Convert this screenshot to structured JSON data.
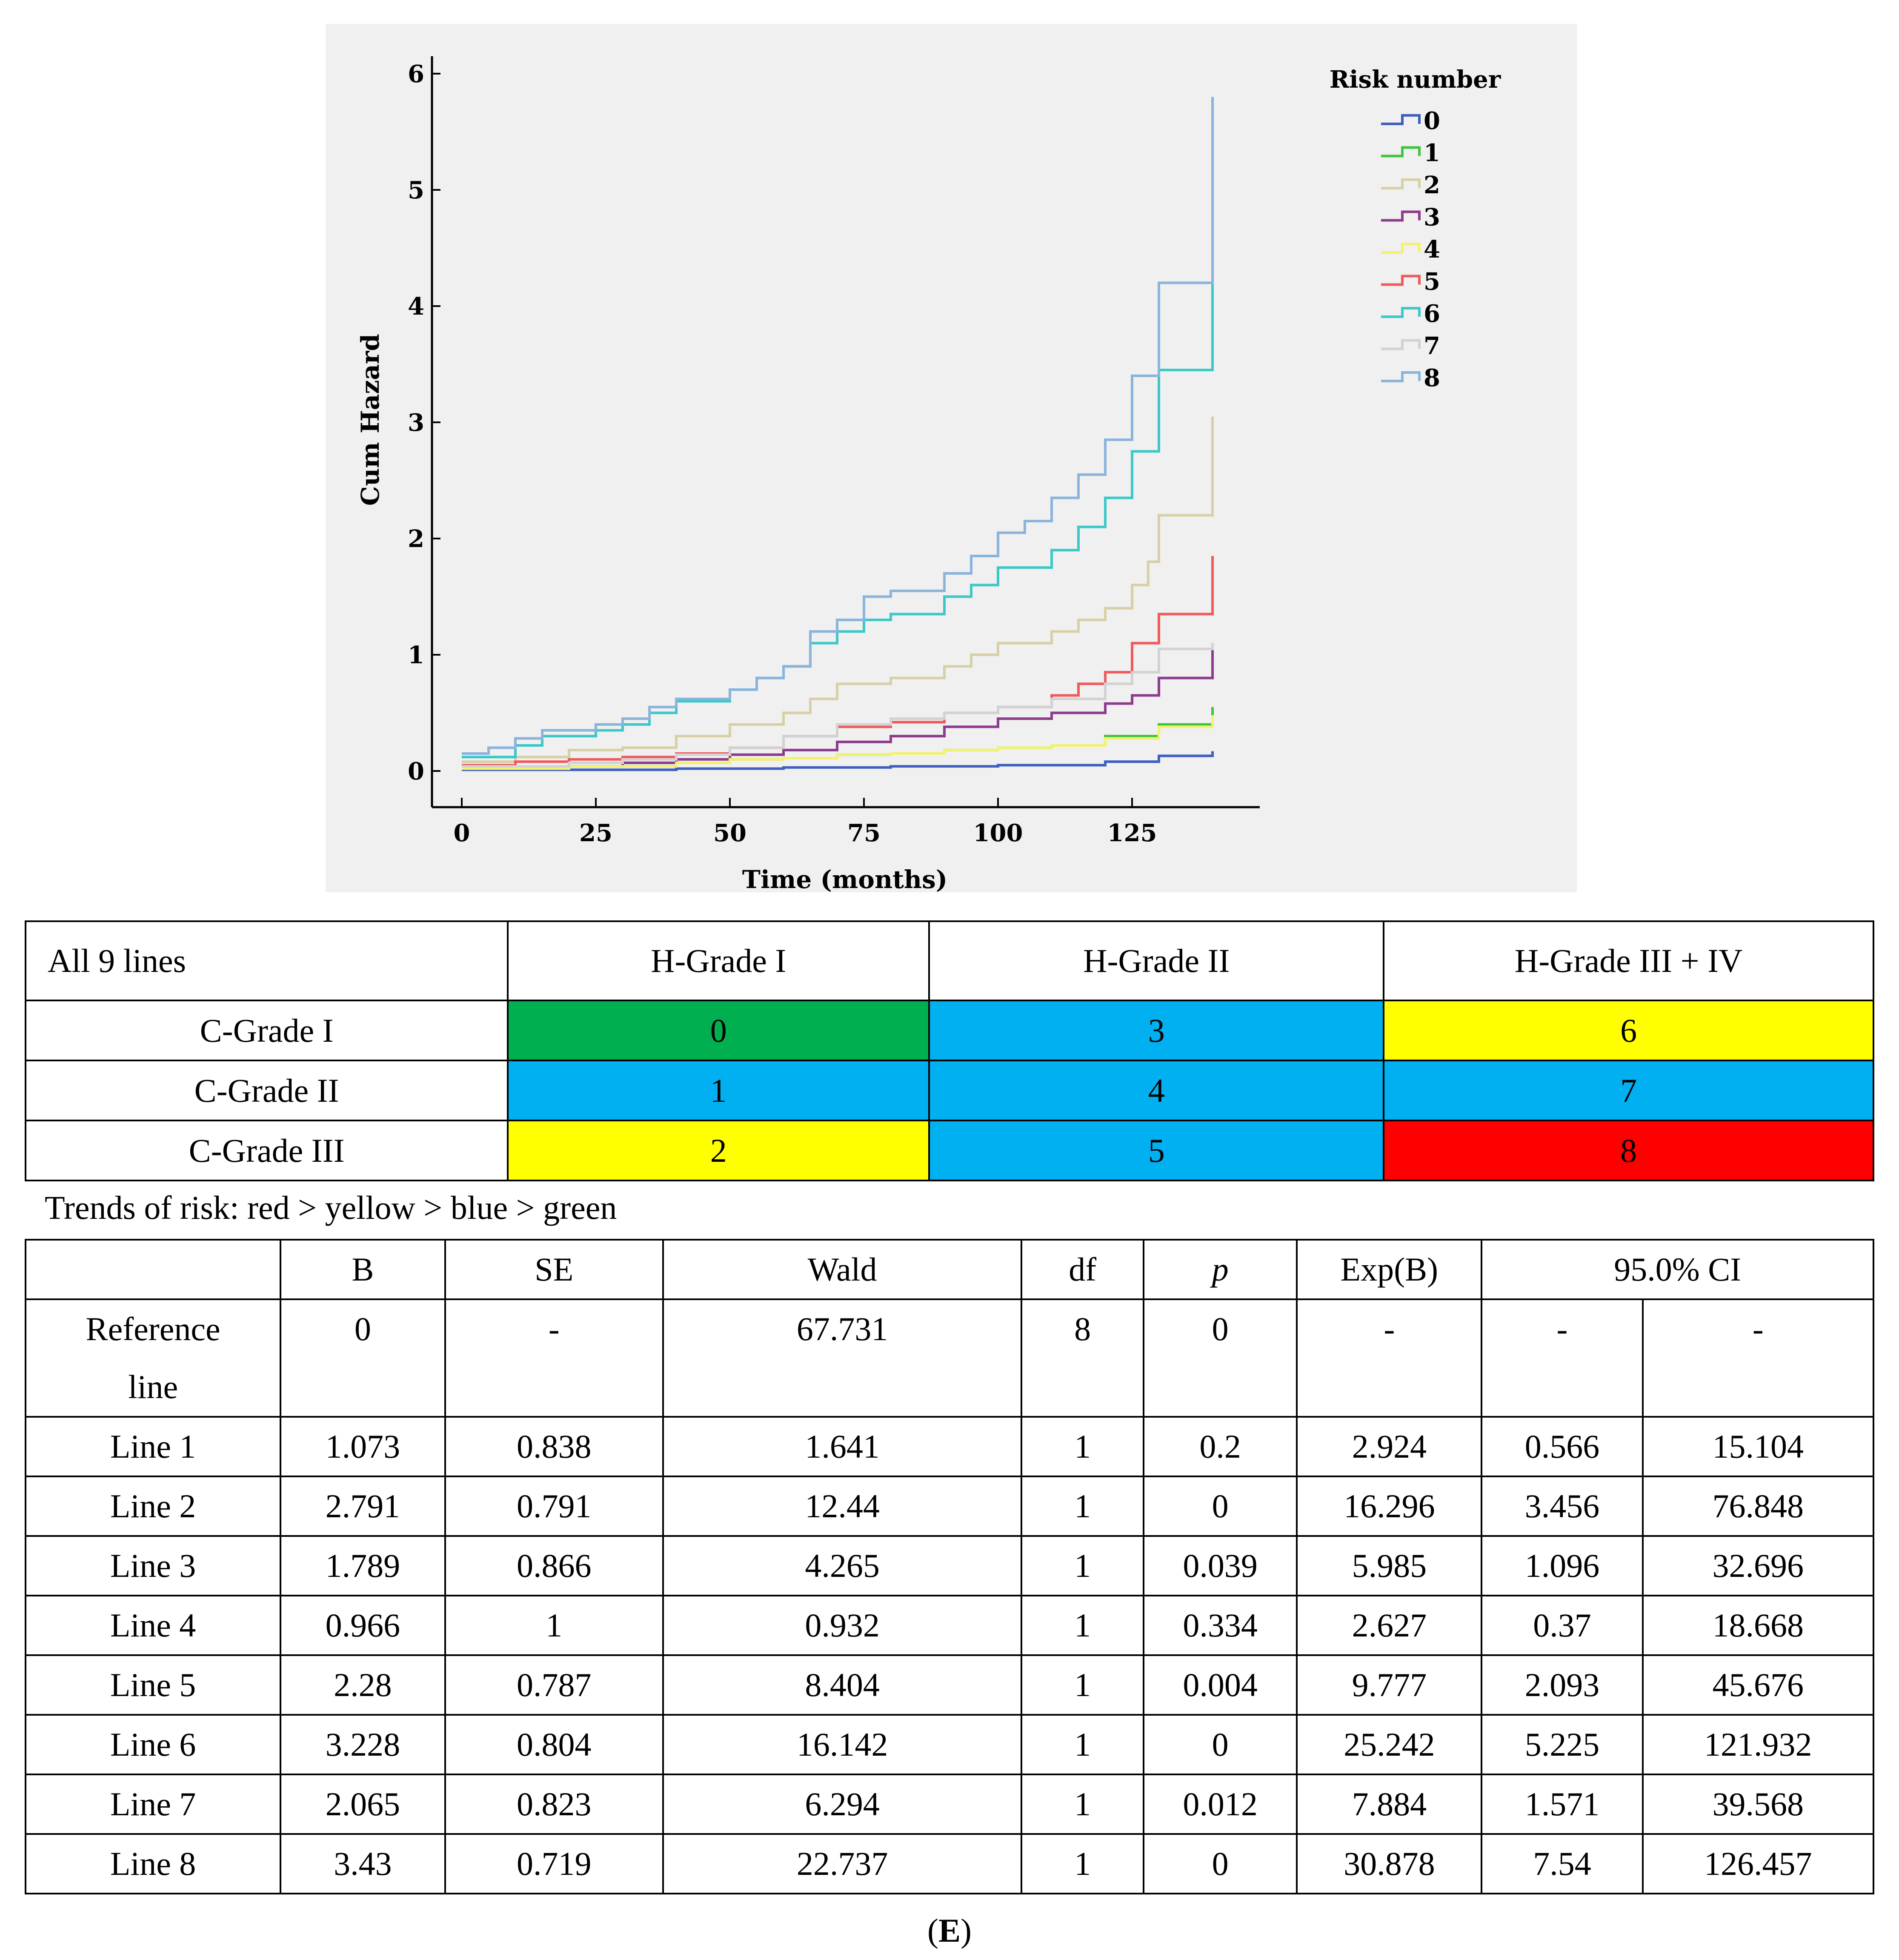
{
  "chart_data": {
    "type": "line",
    "step": true,
    "xlabel": "Time (months)",
    "ylabel": "Cum Hazard",
    "xlim": [
      0,
      140
    ],
    "ylim": [
      0,
      6
    ],
    "xticks": [
      0,
      25,
      50,
      75,
      100,
      125
    ],
    "yticks": [
      0,
      1,
      2,
      3,
      4,
      5,
      6
    ],
    "grid": false,
    "legend": {
      "title": "Risk number",
      "position": "top-right"
    },
    "series": [
      {
        "name": "0",
        "color": "#3f5fbf",
        "points": [
          [
            0,
            0.01
          ],
          [
            20,
            0.01
          ],
          [
            40,
            0.02
          ],
          [
            60,
            0.03
          ],
          [
            80,
            0.04
          ],
          [
            100,
            0.05
          ],
          [
            120,
            0.08
          ],
          [
            130,
            0.13
          ],
          [
            140,
            0.15
          ],
          [
            140,
            0.17
          ]
        ]
      },
      {
        "name": "1",
        "color": "#3ec43e",
        "points": [
          [
            0,
            0.02
          ],
          [
            20,
            0.04
          ],
          [
            40,
            0.07
          ],
          [
            50,
            0.1
          ],
          [
            60,
            0.11
          ],
          [
            70,
            0.14
          ],
          [
            80,
            0.15
          ],
          [
            90,
            0.18
          ],
          [
            100,
            0.2
          ],
          [
            110,
            0.22
          ],
          [
            120,
            0.3
          ],
          [
            130,
            0.4
          ],
          [
            140,
            0.4
          ],
          [
            140,
            0.55
          ]
        ]
      },
      {
        "name": "2",
        "color": "#d8cfa6",
        "points": [
          [
            0,
            0.08
          ],
          [
            10,
            0.12
          ],
          [
            20,
            0.18
          ],
          [
            30,
            0.2
          ],
          [
            40,
            0.3
          ],
          [
            50,
            0.4
          ],
          [
            60,
            0.5
          ],
          [
            65,
            0.62
          ],
          [
            70,
            0.75
          ],
          [
            80,
            0.8
          ],
          [
            90,
            0.9
          ],
          [
            95,
            1.0
          ],
          [
            100,
            1.1
          ],
          [
            110,
            1.2
          ],
          [
            115,
            1.3
          ],
          [
            120,
            1.4
          ],
          [
            125,
            1.6
          ],
          [
            128,
            1.8
          ],
          [
            130,
            2.2
          ],
          [
            140,
            2.2
          ],
          [
            140,
            3.05
          ]
        ]
      },
      {
        "name": "3",
        "color": "#8e3b8e",
        "points": [
          [
            0,
            0.02
          ],
          [
            20,
            0.04
          ],
          [
            30,
            0.07
          ],
          [
            40,
            0.1
          ],
          [
            50,
            0.14
          ],
          [
            60,
            0.18
          ],
          [
            70,
            0.25
          ],
          [
            80,
            0.3
          ],
          [
            90,
            0.38
          ],
          [
            100,
            0.45
          ],
          [
            110,
            0.5
          ],
          [
            120,
            0.58
          ],
          [
            125,
            0.65
          ],
          [
            130,
            0.8
          ],
          [
            140,
            0.8
          ],
          [
            140,
            1.1
          ]
        ]
      },
      {
        "name": "4",
        "color": "#f2f270",
        "points": [
          [
            0,
            0.02
          ],
          [
            20,
            0.04
          ],
          [
            40,
            0.07
          ],
          [
            50,
            0.1
          ],
          [
            60,
            0.11
          ],
          [
            70,
            0.14
          ],
          [
            80,
            0.15
          ],
          [
            90,
            0.18
          ],
          [
            100,
            0.2
          ],
          [
            110,
            0.22
          ],
          [
            120,
            0.28
          ],
          [
            130,
            0.38
          ],
          [
            140,
            0.38
          ],
          [
            140,
            0.48
          ]
        ]
      },
      {
        "name": "5",
        "color": "#f05a5a",
        "points": [
          [
            0,
            0.05
          ],
          [
            10,
            0.08
          ],
          [
            20,
            0.1
          ],
          [
            30,
            0.12
          ],
          [
            40,
            0.15
          ],
          [
            50,
            0.2
          ],
          [
            60,
            0.3
          ],
          [
            70,
            0.38
          ],
          [
            80,
            0.42
          ],
          [
            90,
            0.5
          ],
          [
            100,
            0.55
          ],
          [
            110,
            0.65
          ],
          [
            115,
            0.75
          ],
          [
            120,
            0.85
          ],
          [
            125,
            1.1
          ],
          [
            130,
            1.35
          ],
          [
            140,
            1.35
          ],
          [
            140,
            1.85
          ]
        ]
      },
      {
        "name": "6",
        "color": "#3cc8c8",
        "points": [
          [
            0,
            0.12
          ],
          [
            10,
            0.22
          ],
          [
            15,
            0.3
          ],
          [
            25,
            0.35
          ],
          [
            30,
            0.4
          ],
          [
            35,
            0.5
          ],
          [
            40,
            0.6
          ],
          [
            50,
            0.7
          ],
          [
            55,
            0.8
          ],
          [
            60,
            0.9
          ],
          [
            65,
            1.1
          ],
          [
            70,
            1.2
          ],
          [
            75,
            1.3
          ],
          [
            80,
            1.35
          ],
          [
            90,
            1.5
          ],
          [
            95,
            1.6
          ],
          [
            100,
            1.75
          ],
          [
            110,
            1.9
          ],
          [
            115,
            2.1
          ],
          [
            120,
            2.35
          ],
          [
            125,
            2.75
          ],
          [
            130,
            3.45
          ],
          [
            140,
            3.45
          ],
          [
            140,
            4.75
          ]
        ]
      },
      {
        "name": "7",
        "color": "#d2d2d2",
        "points": [
          [
            0,
            0.04
          ],
          [
            20,
            0.07
          ],
          [
            30,
            0.1
          ],
          [
            40,
            0.14
          ],
          [
            50,
            0.2
          ],
          [
            60,
            0.3
          ],
          [
            70,
            0.4
          ],
          [
            80,
            0.45
          ],
          [
            90,
            0.5
          ],
          [
            100,
            0.55
          ],
          [
            110,
            0.62
          ],
          [
            120,
            0.75
          ],
          [
            125,
            0.85
          ],
          [
            130,
            1.05
          ],
          [
            140,
            1.05
          ],
          [
            140,
            1.1
          ]
        ]
      },
      {
        "name": "8",
        "color": "#8ab4dc",
        "points": [
          [
            0,
            0.15
          ],
          [
            5,
            0.2
          ],
          [
            10,
            0.28
          ],
          [
            15,
            0.35
          ],
          [
            25,
            0.4
          ],
          [
            30,
            0.45
          ],
          [
            35,
            0.55
          ],
          [
            40,
            0.62
          ],
          [
            50,
            0.7
          ],
          [
            55,
            0.8
          ],
          [
            60,
            0.9
          ],
          [
            65,
            1.2
          ],
          [
            70,
            1.3
          ],
          [
            75,
            1.5
          ],
          [
            80,
            1.55
          ],
          [
            90,
            1.7
          ],
          [
            95,
            1.85
          ],
          [
            100,
            2.05
          ],
          [
            105,
            2.15
          ],
          [
            110,
            2.35
          ],
          [
            115,
            2.55
          ],
          [
            120,
            2.85
          ],
          [
            125,
            3.4
          ],
          [
            130,
            4.2
          ],
          [
            140,
            4.2
          ],
          [
            140,
            5.8
          ]
        ]
      }
    ]
  },
  "grade_table": {
    "corner": "All 9 lines",
    "col_headers": [
      "H-Grade I",
      "H-Grade II",
      "H-Grade III + IV"
    ],
    "rows": [
      {
        "label": "C-Grade I",
        "cells": [
          {
            "value": "0",
            "color": "#00b050"
          },
          {
            "value": "3",
            "color": "#00b0f0"
          },
          {
            "value": "6",
            "color": "#ffff00"
          }
        ]
      },
      {
        "label": "C-Grade II",
        "cells": [
          {
            "value": "1",
            "color": "#00b0f0"
          },
          {
            "value": "4",
            "color": "#00b0f0"
          },
          {
            "value": "7",
            "color": "#00b0f0"
          }
        ]
      },
      {
        "label": "C-Grade III",
        "cells": [
          {
            "value": "2",
            "color": "#ffff00"
          },
          {
            "value": "5",
            "color": "#00b0f0"
          },
          {
            "value": "8",
            "color": "#ff0000"
          }
        ]
      }
    ]
  },
  "trend_note": "Trends of risk: red > yellow > blue > green",
  "coef_table": {
    "headers": [
      "",
      "B",
      "SE",
      "Wald",
      "df",
      "p",
      "Exp(B)",
      "95.0% CI"
    ],
    "reference": {
      "label_line1": "Reference",
      "label_line2": "line",
      "values": [
        "0",
        "-",
        "67.731",
        "8",
        "0",
        "-",
        "-",
        "-"
      ]
    },
    "rows": [
      [
        "Line 1",
        "1.073",
        "0.838",
        "1.641",
        "1",
        "0.2",
        "2.924",
        "0.566",
        "15.104"
      ],
      [
        "Line 2",
        "2.791",
        "0.791",
        "12.44",
        "1",
        "0",
        "16.296",
        "3.456",
        "76.848"
      ],
      [
        "Line 3",
        "1.789",
        "0.866",
        "4.265",
        "1",
        "0.039",
        "5.985",
        "1.096",
        "32.696"
      ],
      [
        "Line 4",
        "0.966",
        "1",
        "0.932",
        "1",
        "0.334",
        "2.627",
        "0.37",
        "18.668"
      ],
      [
        "Line 5",
        "2.28",
        "0.787",
        "8.404",
        "1",
        "0.004",
        "9.777",
        "2.093",
        "45.676"
      ],
      [
        "Line 6",
        "3.228",
        "0.804",
        "16.142",
        "1",
        "0",
        "25.242",
        "5.225",
        "121.932"
      ],
      [
        "Line 7",
        "2.065",
        "0.823",
        "6.294",
        "1",
        "0.012",
        "7.884",
        "1.571",
        "39.568"
      ],
      [
        "Line 8",
        "3.43",
        "0.719",
        "22.737",
        "1",
        "0",
        "30.878",
        "7.54",
        "126.457"
      ]
    ]
  },
  "panel_label_open": "(",
  "panel_label": "E",
  "panel_label_close": ")"
}
